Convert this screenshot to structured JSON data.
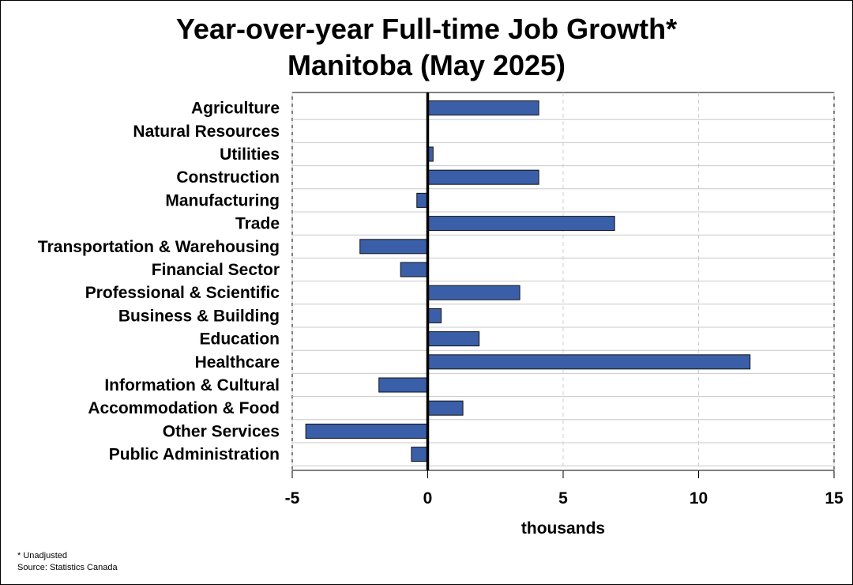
{
  "chart_data": {
    "type": "bar",
    "orientation": "horizontal",
    "title_lines": [
      "Year-over-year Full-time Job Growth*",
      "Manitoba (May 2025)"
    ],
    "categories": [
      "Agriculture",
      "Natural Resources",
      "Utilities",
      "Construction",
      "Manufacturing",
      "Trade",
      "Transportation & Warehousing",
      "Financial Sector",
      "Professional & Scientific",
      "Business & Building",
      "Education",
      "Healthcare",
      "Information & Cultural",
      "Accommodation & Food",
      "Other Services",
      "Public Administration"
    ],
    "values": [
      4.1,
      0,
      0.2,
      4.1,
      -0.4,
      6.9,
      -2.5,
      -1.0,
      3.4,
      0.5,
      1.9,
      11.9,
      -1.8,
      1.3,
      -4.5,
      -0.6
    ],
    "xlabel": "thousands",
    "xlim": [
      -5,
      15
    ],
    "xticks": [
      -5,
      0,
      5,
      10,
      15
    ],
    "xtick_labels": [
      "-5",
      "0",
      "5",
      "10",
      "15"
    ],
    "bar_color": "#3a5fa8",
    "grid": true
  },
  "footnote": {
    "line1": "* Unadjusted",
    "line2": "Source: Statistics Canada"
  }
}
